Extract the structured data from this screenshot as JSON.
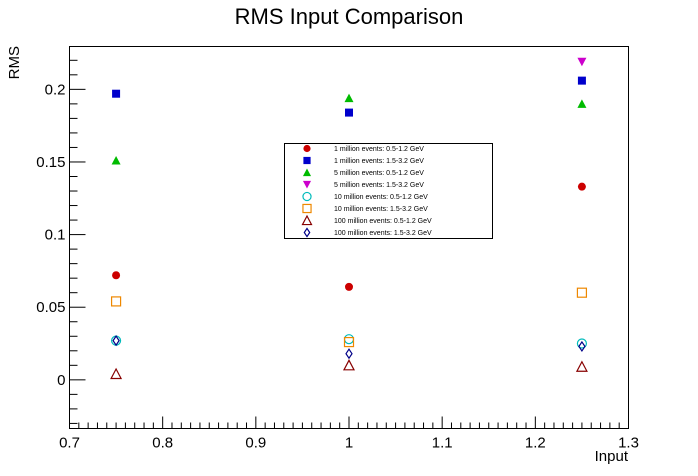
{
  "chart_data": {
    "type": "scatter",
    "title": "RMS Input Comparison",
    "xlabel": "Input",
    "ylabel": "RMS",
    "xlim": [
      0.7,
      1.3
    ],
    "ylim": [
      -0.0335,
      0.2295
    ],
    "x_ticks": [
      "0.7",
      "0.8",
      "0.9",
      "1",
      "1.1",
      "1.2",
      "1.3"
    ],
    "y_ticks": [
      "0",
      "0.05",
      "0.1",
      "0.15",
      "0.2"
    ],
    "x_tick_values": [
      0.7,
      0.8,
      0.9,
      1.0,
      1.1,
      1.2,
      1.3
    ],
    "y_tick_values": [
      0,
      0.05,
      0.1,
      0.15,
      0.2
    ],
    "grid": false,
    "legend_position": "center",
    "series": [
      {
        "name": "1 million events: 0.5-1.2 GeV",
        "marker": "circle-filled",
        "color": "#cc0000",
        "x": [
          0.75,
          1.0,
          1.25
        ],
        "y": [
          0.072,
          0.064,
          0.133
        ]
      },
      {
        "name": "1 million events: 1.5-3.2 GeV",
        "marker": "square-filled",
        "color": "#0000cc",
        "x": [
          0.75,
          1.0,
          1.25
        ],
        "y": [
          0.197,
          0.184,
          0.206
        ]
      },
      {
        "name": "5 million events: 0.5-1.2 GeV",
        "marker": "triangle-up-filled",
        "color": "#00bb00",
        "x": [
          0.75,
          1.0,
          1.25
        ],
        "y": [
          0.151,
          0.194,
          0.19
        ]
      },
      {
        "name": "5 million events: 1.5-3.2 GeV",
        "marker": "triangle-down-filled",
        "color": "#cc00cc",
        "x": [
          1.25
        ],
        "y": [
          0.219
        ]
      },
      {
        "name": "10 million events: 0.5-1.2 GeV",
        "marker": "circle-open",
        "color": "#00bbbb",
        "x": [
          0.75,
          1.0,
          1.25
        ],
        "y": [
          0.027,
          0.028,
          0.025
        ]
      },
      {
        "name": "10 million events: 1.5-3.2 GeV",
        "marker": "square-open",
        "color": "#ee8800",
        "x": [
          0.75,
          1.0,
          1.25
        ],
        "y": [
          0.054,
          0.026,
          0.06
        ]
      },
      {
        "name": "100 million events: 0.5-1.2 GeV",
        "marker": "triangle-up-open",
        "color": "#880000",
        "x": [
          0.75,
          1.0,
          1.25
        ],
        "y": [
          0.004,
          0.01,
          0.009
        ]
      },
      {
        "name": "100 million events: 1.5-3.2 GeV",
        "marker": "diamond-open",
        "color": "#000088",
        "x": [
          0.75,
          1.0,
          1.25
        ],
        "y": [
          0.027,
          0.018,
          0.023
        ]
      }
    ]
  }
}
